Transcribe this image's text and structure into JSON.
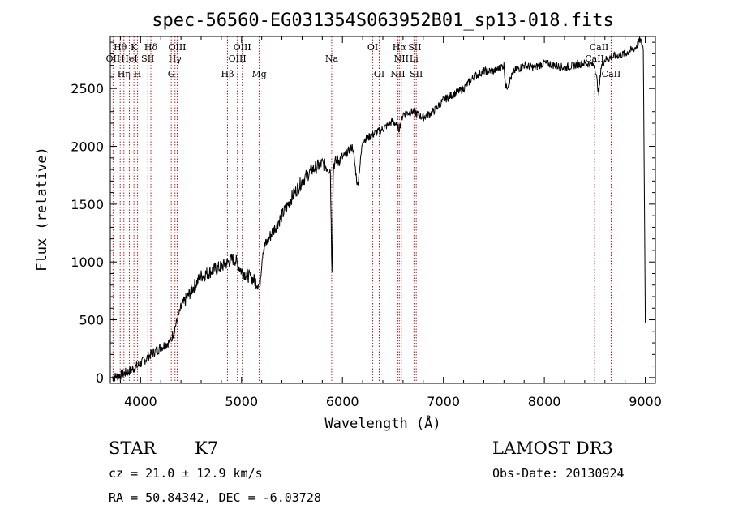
{
  "chart_data": {
    "type": "line",
    "title": "spec-56560-EG031354S063952B01_sp13-018.fits",
    "xlabel": "Wavelength (Å)",
    "ylabel": "Flux (relative)",
    "xlim": [
      3700,
      9100
    ],
    "ylim": [
      -50,
      2950
    ],
    "x_ticks": [
      4000,
      5000,
      6000,
      7000,
      8000,
      9000
    ],
    "y_ticks": [
      0,
      500,
      1000,
      1500,
      2000,
      2500
    ],
    "spectrum_anchors": {
      "wavelength": [
        3720,
        3800,
        3900,
        4000,
        4100,
        4200,
        4300,
        4400,
        4500,
        4600,
        4700,
        4800,
        4870,
        4930,
        5000,
        5100,
        5180,
        5210,
        5300,
        5400,
        5500,
        5600,
        5700,
        5800,
        5880,
        5895,
        5910,
        6000,
        6100,
        6150,
        6200,
        6300,
        6400,
        6500,
        6560,
        6600,
        6700,
        6800,
        6900,
        7000,
        7100,
        7200,
        7300,
        7400,
        7500,
        7600,
        7620,
        7700,
        7800,
        7900,
        8000,
        8100,
        8200,
        8300,
        8400,
        8500,
        8540,
        8560,
        8600,
        8700,
        8800,
        8900,
        8950,
        8980,
        9000
      ],
      "flux": [
        0,
        20,
        60,
        120,
        200,
        260,
        320,
        600,
        750,
        880,
        920,
        960,
        1000,
        1030,
        920,
        860,
        800,
        1100,
        1250,
        1400,
        1560,
        1700,
        1800,
        1850,
        1800,
        900,
        1850,
        1900,
        2000,
        1650,
        2050,
        2100,
        2150,
        2220,
        2150,
        2280,
        2300,
        2250,
        2300,
        2400,
        2450,
        2500,
        2600,
        2650,
        2650,
        2700,
        2500,
        2650,
        2700,
        2680,
        2720,
        2700,
        2680,
        2700,
        2720,
        2700,
        2450,
        2680,
        2750,
        2780,
        2800,
        2850,
        2920,
        2850,
        500
      ]
    },
    "spectral_lines": [
      {
        "wavelength": 3727,
        "label": "OII",
        "row": 2
      },
      {
        "wavelength": 3798,
        "label": "Hθ",
        "row": 1
      },
      {
        "wavelength": 3835,
        "label": "Hη",
        "row": 3
      },
      {
        "wavelength": 3889,
        "label": "HeI",
        "row": 2
      },
      {
        "wavelength": 3934,
        "label": "K",
        "row": 1
      },
      {
        "wavelength": 3970,
        "label": "H",
        "row": 3
      },
      {
        "wavelength": 4072,
        "label": "SII",
        "row": 2
      },
      {
        "wavelength": 4102,
        "label": "Hδ",
        "row": 1
      },
      {
        "wavelength": 4304,
        "label": "G",
        "row": 3
      },
      {
        "wavelength": 4341,
        "label": "Hγ",
        "row": 2
      },
      {
        "wavelength": 4363,
        "label": "OIII",
        "row": 1
      },
      {
        "wavelength": 4861,
        "label": "Hβ",
        "row": 3
      },
      {
        "wavelength": 4959,
        "label": "OIII",
        "row": 2
      },
      {
        "wavelength": 5007,
        "label": "OIII",
        "row": 1
      },
      {
        "wavelength": 5175,
        "label": "Mg",
        "row": 3
      },
      {
        "wavelength": 5893,
        "label": "Na",
        "row": 2
      },
      {
        "wavelength": 6300,
        "label": "OI",
        "row": 1
      },
      {
        "wavelength": 6364,
        "label": "OI",
        "row": 3
      },
      {
        "wavelength": 6548,
        "label": "NII",
        "row": 3
      },
      {
        "wavelength": 6563,
        "label": "Hα",
        "row": 1
      },
      {
        "wavelength": 6583,
        "label": "NII",
        "row": 2
      },
      {
        "wavelength": 6708,
        "label": "Li",
        "row": 2
      },
      {
        "wavelength": 6716,
        "label": "SII",
        "row": 1
      },
      {
        "wavelength": 6731,
        "label": "SII",
        "row": 3
      },
      {
        "wavelength": 8498,
        "label": "CaII",
        "row": 2
      },
      {
        "wavelength": 8542,
        "label": "CaII",
        "row": 1
      },
      {
        "wavelength": 8662,
        "label": "CaII",
        "row": 3
      }
    ]
  },
  "info": {
    "object_type": "STAR",
    "subclass": "K7",
    "survey": "LAMOST DR3",
    "redshift": "cz = 21.0 ± 12.9 km/s",
    "obs_date": "Obs-Date: 20130924",
    "coords": "RA =  50.84342, DEC =  -6.03728"
  }
}
